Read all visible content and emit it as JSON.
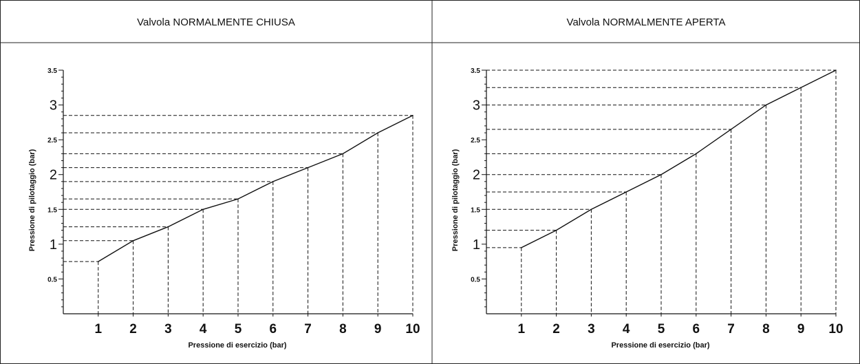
{
  "chart_data": [
    {
      "type": "line",
      "title": "Valvola NORMALMENTE CHIUSA",
      "xlabel": "Pressione di esercizio (bar)",
      "ylabel": "Pressione di pilotaggio (bar)",
      "x_ticks": [
        "1",
        "2",
        "3",
        "4",
        "5",
        "6",
        "7",
        "8",
        "9",
        "10"
      ],
      "y_ticks": [
        "0.5",
        "1",
        "1.5",
        "2",
        "2.5",
        "3",
        "3.5"
      ],
      "xlim": [
        0,
        10
      ],
      "ylim": [
        0,
        3.5
      ],
      "grid": false,
      "reference_lines": "dashed drop lines from each point to both axes",
      "series": [
        {
          "x": [
            1,
            2,
            3,
            4,
            5,
            6,
            7,
            8,
            9,
            10
          ],
          "y": [
            0.75,
            1.05,
            1.25,
            1.5,
            1.65,
            1.9,
            2.1,
            2.3,
            2.6,
            2.85
          ]
        }
      ]
    },
    {
      "type": "line",
      "title": "Valvola NORMALMENTE APERTA",
      "xlabel": "Pressione di esercizio (bar)",
      "ylabel": "Pressione di pilotaggio (bar)",
      "x_ticks": [
        "1",
        "2",
        "3",
        "4",
        "5",
        "6",
        "7",
        "8",
        "9",
        "10"
      ],
      "y_ticks": [
        "0.5",
        "1",
        "1.5",
        "2",
        "2.5",
        "3",
        "3.5"
      ],
      "xlim": [
        0,
        10
      ],
      "ylim": [
        0,
        3.5
      ],
      "grid": false,
      "reference_lines": "dashed drop lines from each point to both axes",
      "series": [
        {
          "x": [
            1,
            2,
            3,
            4,
            5,
            6,
            7,
            8,
            9,
            10
          ],
          "y": [
            0.95,
            1.2,
            1.5,
            1.75,
            2.0,
            2.3,
            2.65,
            3.0,
            3.25,
            3.5
          ]
        }
      ]
    }
  ]
}
